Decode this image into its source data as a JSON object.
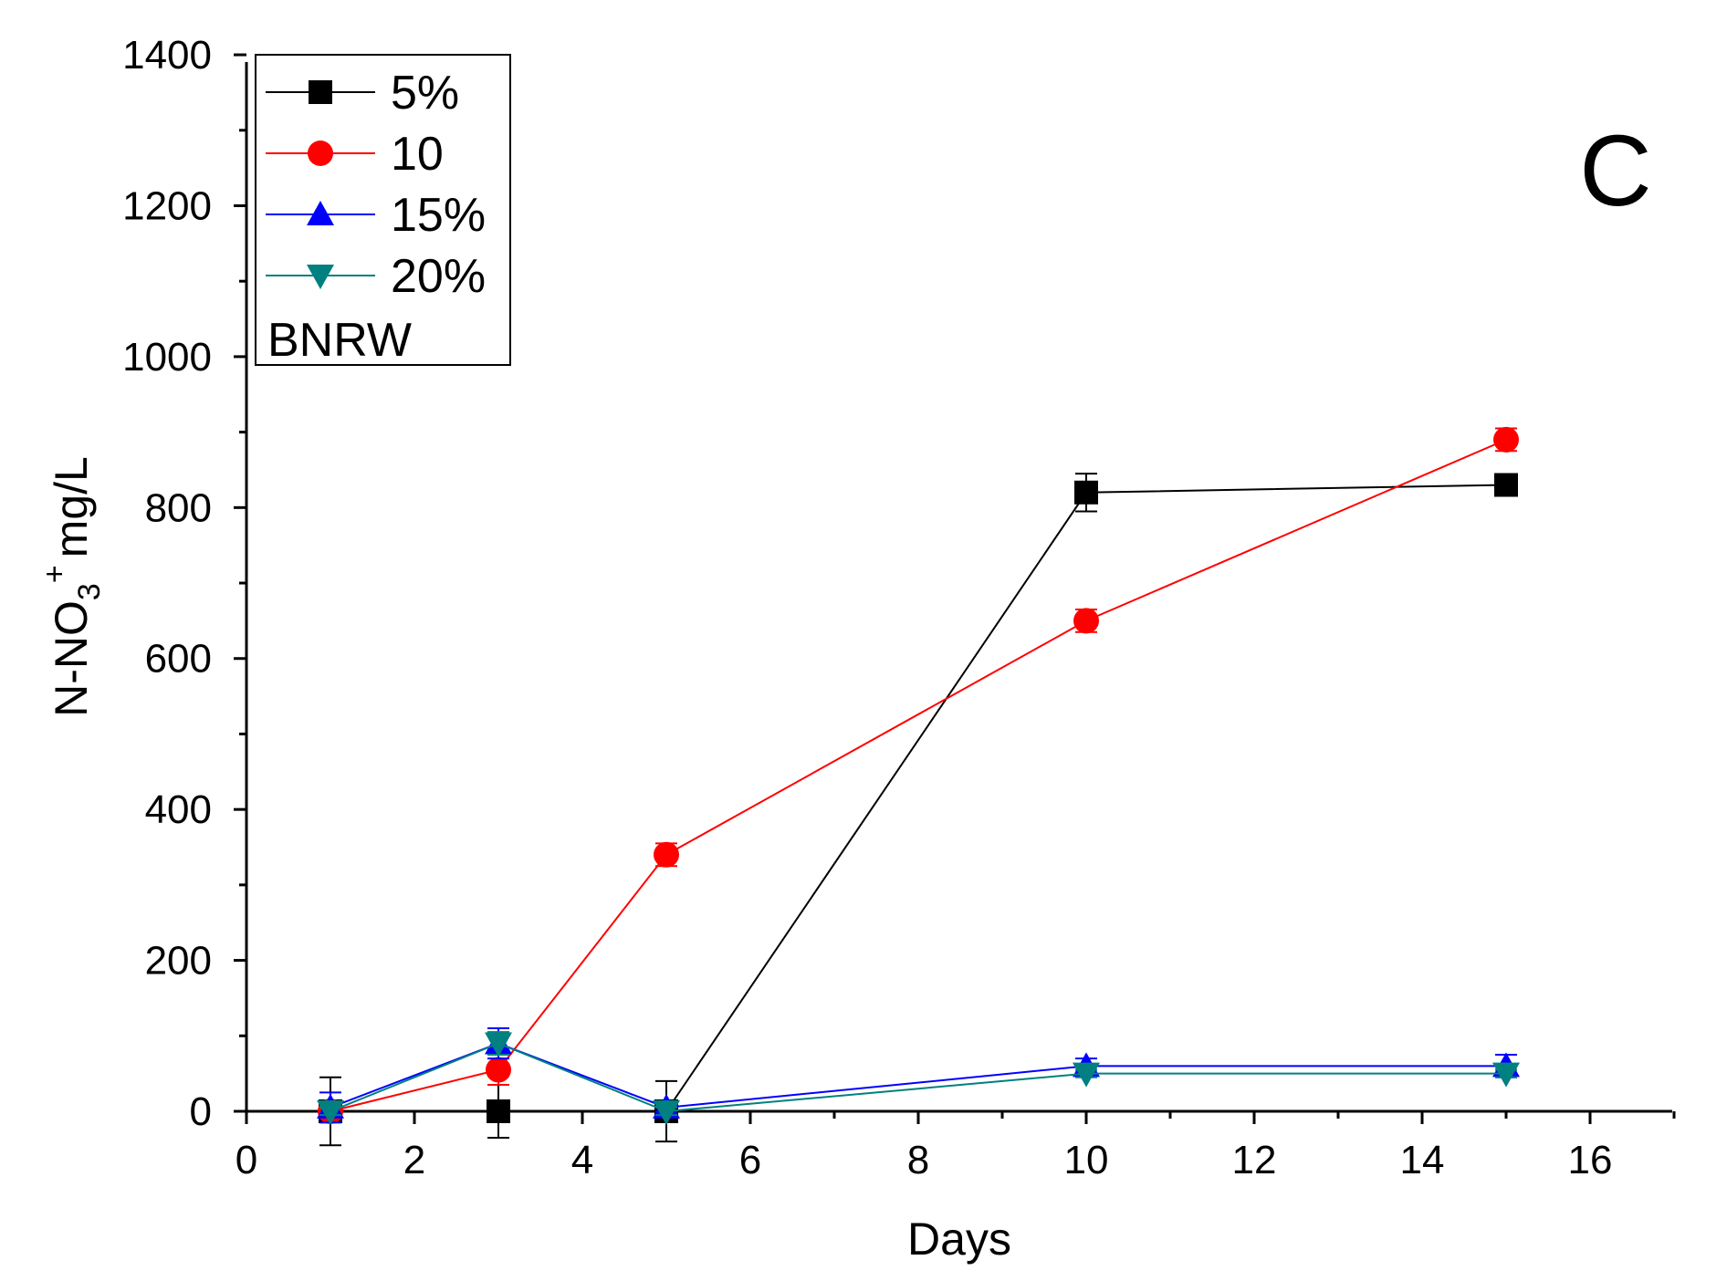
{
  "chart_data": {
    "type": "line",
    "panel_label": "C",
    "xlabel": "Days",
    "ylabel": {
      "main": "N-NO",
      "subscript": "3",
      "superscript": "+",
      "unit": "mg/L"
    },
    "x_ticks": [
      "0",
      "2",
      "4",
      "6",
      "8",
      "10",
      "12",
      "14",
      "16"
    ],
    "y_ticks": [
      "0",
      "200",
      "400",
      "600",
      "800",
      "1000",
      "1200",
      "1400"
    ],
    "x_tick_values": [
      0,
      2,
      4,
      6,
      8,
      10,
      12,
      14,
      16
    ],
    "y_tick_values": [
      0,
      200,
      400,
      600,
      800,
      1000,
      1200,
      1400
    ],
    "xlim": [
      0,
      17
    ],
    "ylim": [
      0,
      1400
    ],
    "x_positions": [
      1,
      3,
      5,
      10,
      15
    ],
    "x_axis_mapping": "days plotted at nominal positions 1, 3, 5, 10, 15",
    "legend_title": "BNRW",
    "series": [
      {
        "name": "5%",
        "color": "#000000",
        "marker": "square",
        "values": [
          0,
          0,
          0,
          820,
          830
        ],
        "errors": [
          45,
          35,
          40,
          25,
          10
        ]
      },
      {
        "name": "10",
        "color": "#ff0000",
        "marker": "circle",
        "values": [
          0,
          55,
          340,
          650,
          890
        ],
        "errors": [
          5,
          20,
          15,
          15,
          15
        ]
      },
      {
        "name": "15%",
        "color": "#0000ff",
        "marker": "triangle-up",
        "values": [
          5,
          90,
          5,
          60,
          60
        ],
        "errors": [
          20,
          20,
          5,
          10,
          15
        ]
      },
      {
        "name": "20%",
        "color": "#008080",
        "marker": "triangle-down",
        "values": [
          0,
          90,
          0,
          50,
          50
        ],
        "errors": [
          5,
          15,
          5,
          5,
          5
        ]
      }
    ]
  }
}
